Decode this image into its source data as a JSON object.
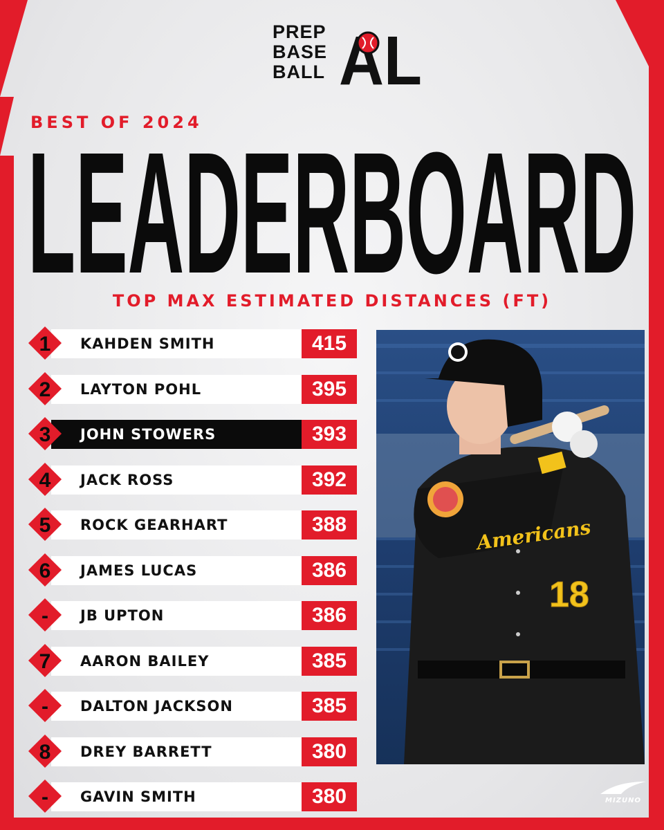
{
  "logo": {
    "line1": "PREP",
    "line2": "BASE",
    "line3": "BALL",
    "mark_text": "AL"
  },
  "header": {
    "kicker": "BEST OF 2024",
    "title": "LEADERBOARD",
    "subtitle": "TOP MAX ESTIMATED DISTANCES (FT)"
  },
  "leaderboard": [
    {
      "rank": "1",
      "name": "KAHDEN SMITH",
      "distance": "415",
      "highlight": false
    },
    {
      "rank": "2",
      "name": "LAYTON POHL",
      "distance": "395",
      "highlight": false
    },
    {
      "rank": "3",
      "name": "JOHN STOWERS",
      "distance": "393",
      "highlight": true
    },
    {
      "rank": "4",
      "name": "JACK ROSS",
      "distance": "392",
      "highlight": false
    },
    {
      "rank": "5",
      "name": "ROCK GEARHART",
      "distance": "388",
      "highlight": false
    },
    {
      "rank": "6",
      "name": "JAMES LUCAS",
      "distance": "386",
      "highlight": false
    },
    {
      "rank": "-",
      "name": "JB UPTON",
      "distance": "386",
      "highlight": false
    },
    {
      "rank": "7",
      "name": "AARON BAILEY",
      "distance": "385",
      "highlight": false
    },
    {
      "rank": "-",
      "name": "DALTON JACKSON",
      "distance": "385",
      "highlight": false
    },
    {
      "rank": "8",
      "name": "DREY BARRETT",
      "distance": "380",
      "highlight": false
    },
    {
      "rank": "-",
      "name": "GAVIN SMITH",
      "distance": "380",
      "highlight": false
    }
  ],
  "photo": {
    "jersey_number": "18",
    "jersey_text": "Americans"
  },
  "sponsor": {
    "name": "MIZUNO"
  },
  "colors": {
    "accent": "#e21c2a",
    "dark": "#0b0b0b",
    "background": "#ececed"
  }
}
